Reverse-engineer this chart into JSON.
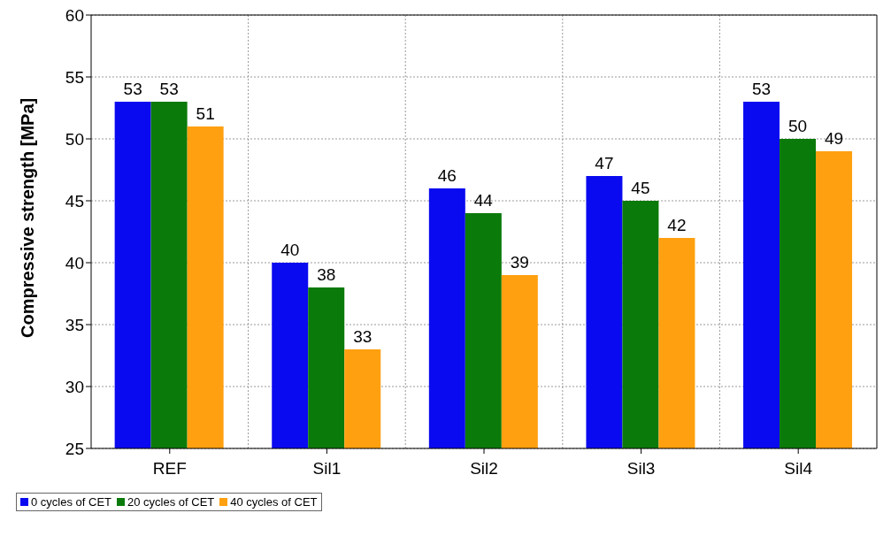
{
  "chart_data": {
    "type": "bar",
    "ylabel": "Compressive strength [MPa]",
    "categories": [
      "REF",
      "Sil1",
      "Sil2",
      "Sil3",
      "Sil4"
    ],
    "series": [
      {
        "name": "0 cycles of CET",
        "color": "#0a0af0",
        "values": [
          53,
          40,
          46,
          47,
          53
        ]
      },
      {
        "name": "20 cycles of CET",
        "color": "#0a7a0a",
        "values": [
          53,
          38,
          44,
          45,
          50
        ]
      },
      {
        "name": "40 cycles of CET",
        "color": "#ffa010",
        "values": [
          51,
          33,
          39,
          42,
          49
        ]
      }
    ],
    "ylim": [
      25,
      60
    ],
    "yticks": [
      25,
      30,
      35,
      40,
      45,
      50,
      55,
      60
    ],
    "grid": true,
    "legend": "bottom left",
    "data_labels": true
  }
}
